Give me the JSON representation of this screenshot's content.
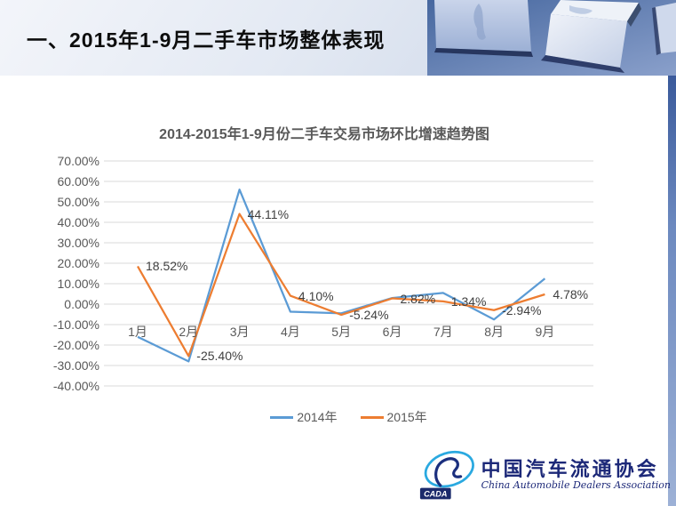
{
  "header": {
    "title": "一、2015年1-9月二手车市场整体表现"
  },
  "chart_data": {
    "type": "line",
    "title": "2014-2015年1-9月份二手车交易市场环比增速趋势图",
    "categories": [
      "1月",
      "2月",
      "3月",
      "4月",
      "5月",
      "6月",
      "7月",
      "8月",
      "9月"
    ],
    "series": [
      {
        "name": "2014年",
        "color": "#5B9BD5",
        "values": [
          -16.0,
          -28.0,
          56.0,
          -3.7,
          -4.5,
          3.0,
          5.5,
          -7.5,
          12.5
        ],
        "values_note": "estimated from pixels, no data labels shown",
        "labels": null
      },
      {
        "name": "2015年",
        "color": "#ED7D31",
        "values": [
          18.52,
          -25.4,
          44.11,
          4.1,
          -5.24,
          2.82,
          1.34,
          -2.94,
          4.78
        ],
        "labels": [
          "18.52%",
          "-25.40%",
          "44.11%",
          "4.10%",
          "-5.24%",
          "2.82%",
          "1.34%",
          "-2.94%",
          "4.78%"
        ]
      }
    ],
    "ylabel": "",
    "xlabel": "",
    "ylim": [
      -40,
      70
    ],
    "ytick_step": 10,
    "ytick_labels": [
      "70.00%",
      "60.00%",
      "50.00%",
      "40.00%",
      "30.00%",
      "20.00%",
      "10.00%",
      "0.00%",
      "-10.00%",
      "-20.00%",
      "-30.00%",
      "-40.00%"
    ],
    "grid": true,
    "gridline_color": "#d9d9d9",
    "legend_position": "bottom"
  },
  "logo": {
    "badge": "CADA",
    "name_cn": "中国汽车流通协会",
    "name_en": "China Automobile Dealers Association"
  },
  "colors": {
    "series_2014": "#5B9BD5",
    "series_2015": "#ED7D31",
    "axis_text": "#595959",
    "header_text": "#0d0d0d",
    "logo_navy": "#1c2878"
  }
}
